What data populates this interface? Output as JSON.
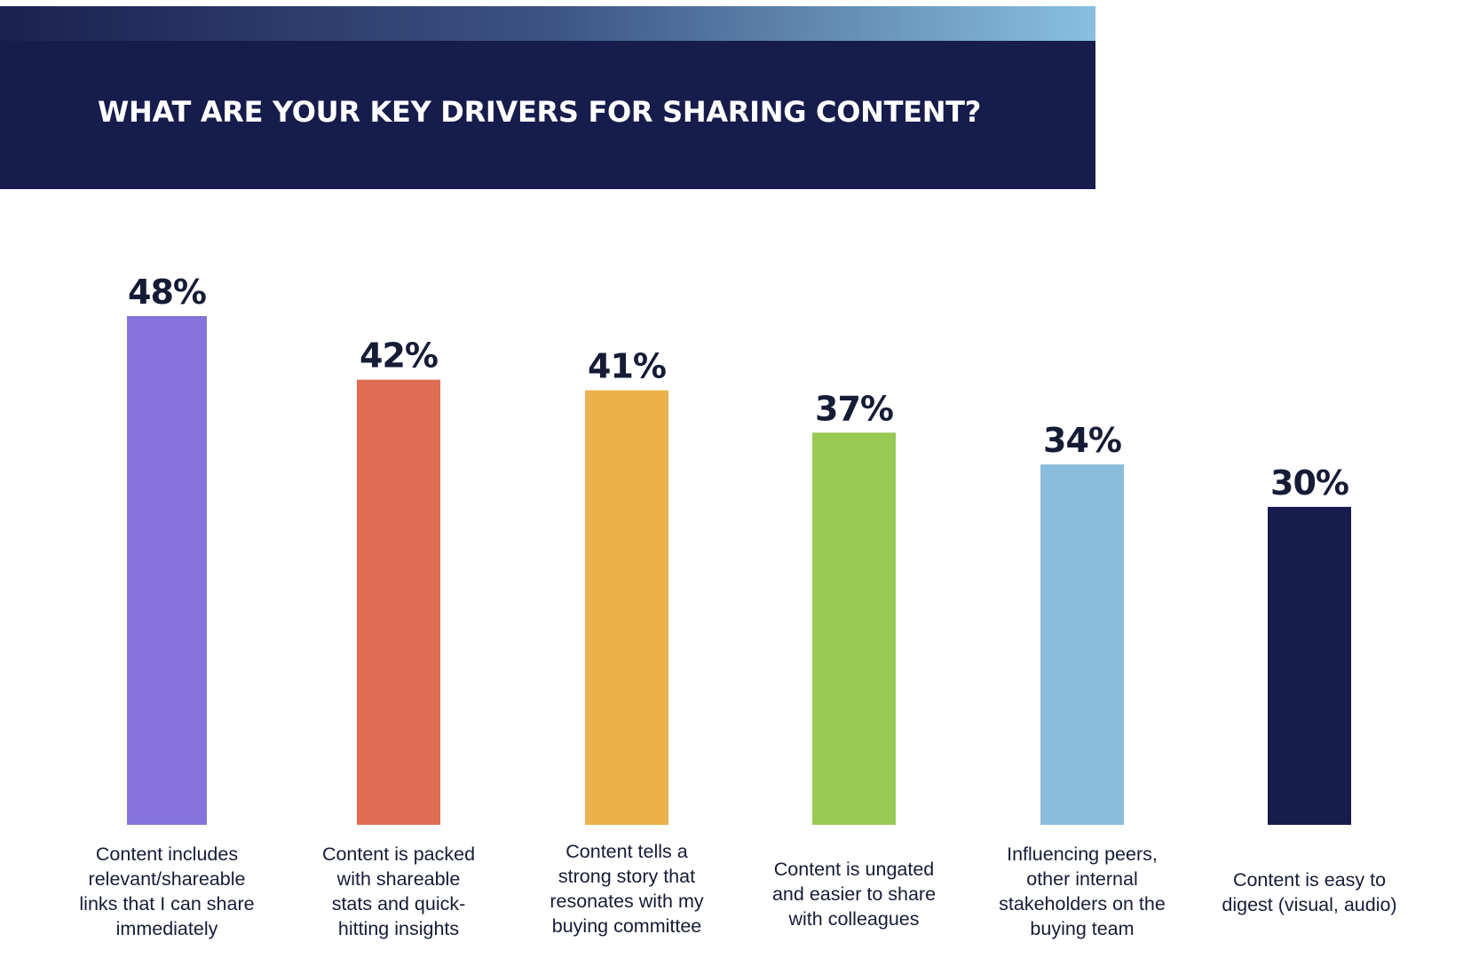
{
  "header": {
    "title": "WHAT ARE YOUR KEY DRIVERS FOR SHARING CONTENT?",
    "gradient_colors": [
      "#1a2150",
      "#3c5384",
      "#88c0e0"
    ]
  },
  "chart_data": {
    "type": "bar",
    "title": "WHAT ARE YOUR KEY DRIVERS FOR SHARING CONTENT?",
    "xlabel": "",
    "ylabel": "",
    "ylim": [
      0,
      48
    ],
    "grid": false,
    "legend": "none",
    "categories": [
      "Content includes relevant/shareable links that I can share immediately",
      "Content is packed with shareable stats and quick-hitting insights",
      "Content tells a strong story that resonates with my buying committee",
      "Content is ungated and easier to share with colleagues",
      "Influencing peers, other internal stakeholders on the buying team",
      "Content is easy to digest (visual, audio)"
    ],
    "values": [
      48,
      42,
      41,
      37,
      34,
      30
    ],
    "value_labels": [
      "48%",
      "42%",
      "41%",
      "37%",
      "34%",
      "30%"
    ],
    "colors": [
      "#8674dc",
      "#e06d53",
      "#ebb14b",
      "#98c954",
      "#8abddc",
      "#161c4b"
    ],
    "category_lines": [
      [
        "Content includes",
        "relevant/shareable",
        "links that I can share",
        "immediately"
      ],
      [
        "Content is packed",
        "with shareable",
        "stats and quick-",
        "hitting insights"
      ],
      [
        "Content tells a",
        "strong story that",
        "resonates with my",
        "buying committee"
      ],
      [
        "Content is ungated",
        "and easier to share",
        "with colleagues"
      ],
      [
        "Influencing peers,",
        "other internal",
        "stakeholders on the",
        "buying team"
      ],
      [
        "Content is easy to",
        "digest (visual, audio)"
      ]
    ]
  }
}
